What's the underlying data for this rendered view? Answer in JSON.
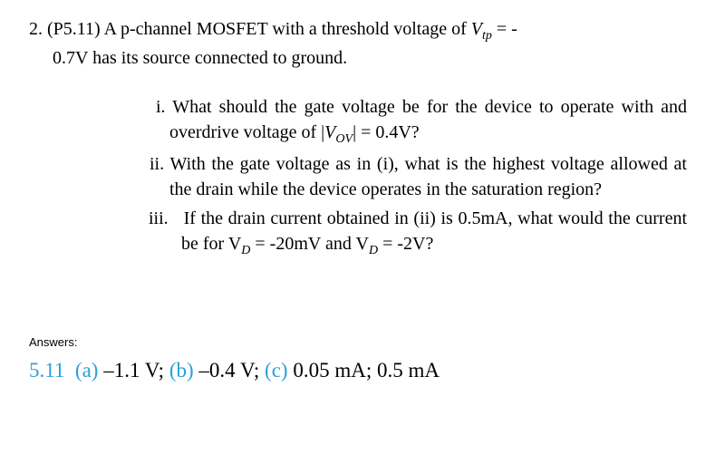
{
  "problem": {
    "number": "2.",
    "ref": "(P5.11)",
    "text_line1_a": "A p-channel MOSFET with a threshold voltage of ",
    "vtp_sym_v": "V",
    "vtp_sym_sub": "tp",
    "text_line1_b": " = -",
    "text_line2": "0.7V has its source connected to ground."
  },
  "subparts": {
    "i": {
      "label": "i.",
      "seg1": "What should the gate voltage be for the device to operate with and overdrive voltage of |",
      "vov_v": "V",
      "vov_sub": "OV",
      "seg2": "| = 0.4V?"
    },
    "ii": {
      "label": "ii.",
      "text": "With the gate voltage as in (i), what is the highest voltage allowed at the drain while the device operates in the saturation region?"
    },
    "iii": {
      "label": "iii.",
      "seg1": "If the drain current obtained in (ii) is 0.5mA, what would the current be for V",
      "sub1": "D",
      "seg2": " = -20mV and V",
      "sub2": "D",
      "seg3": " = -2V?"
    }
  },
  "answers": {
    "label": "Answers:",
    "num": "5.11",
    "a_label": "(a)",
    "a_val": " –1.1 V; ",
    "b_label": "(b)",
    "b_val": " –0.4 V; ",
    "c_label": "(c)",
    "c_val": " 0.05 mA; 0.5 mA"
  },
  "colors": {
    "text": "#000000",
    "accent": "#2aa0d8",
    "background": "#ffffff"
  },
  "typography": {
    "body_font": "Times New Roman",
    "body_size_pt": 15,
    "answers_label_font": "Arial",
    "answers_label_size_pt": 10,
    "answers_line_size_pt": 17
  }
}
